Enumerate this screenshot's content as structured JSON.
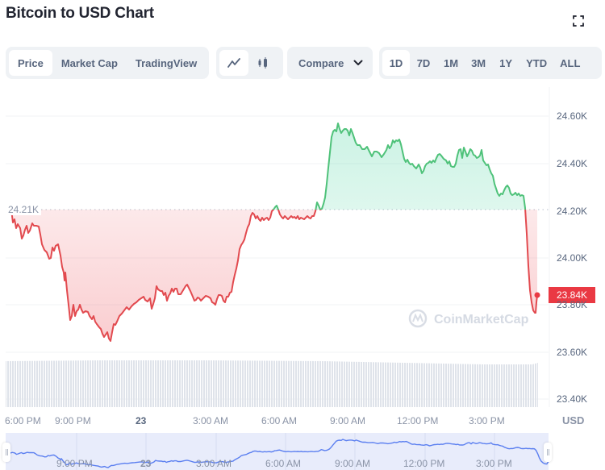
{
  "header": {
    "title": "Bitcoin to USD Chart",
    "fullscreen_icon": "fullscreen-expand-icon"
  },
  "toolbar": {
    "type_tabs": [
      {
        "label": "Price",
        "active": true
      },
      {
        "label": "Market Cap",
        "active": false
      },
      {
        "label": "TradingView",
        "active": false
      }
    ],
    "chart_type": [
      {
        "icon": "line-chart-icon",
        "active": true
      },
      {
        "icon": "candlestick-icon",
        "active": false
      }
    ],
    "compare": {
      "label": "Compare  ",
      "icon": "chevron-down-icon"
    },
    "ranges": [
      {
        "label": "1D",
        "active": true
      },
      {
        "label": "7D",
        "active": false
      },
      {
        "label": "1M",
        "active": false
      },
      {
        "label": "3M",
        "active": false
      },
      {
        "label": "1Y",
        "active": false
      },
      {
        "label": "YTD",
        "active": false
      },
      {
        "label": "ALL",
        "active": false
      }
    ]
  },
  "chart": {
    "baseline_label": "24.21K",
    "current_price_label": "23.84K",
    "currency_label": "USD",
    "watermark": "CoinMarketCap",
    "y_ticks": [
      "24.60K",
      "24.40K",
      "24.20K",
      "24.00K",
      "23.80K",
      "23.60K",
      "23.40K"
    ],
    "x_ticks": [
      "6:00 PM",
      "9:00 PM",
      "23",
      "3:00 AM",
      "6:00 AM",
      "9:00 AM",
      "12:00 PM",
      "3:00 PM"
    ],
    "navigator_ticks": [
      "9:00 PM",
      "23",
      "3:00 AM",
      "6:00 AM",
      "9:00 AM",
      "12:00 PM",
      "3:00 PM"
    ],
    "colors": {
      "up": "#16c784",
      "up_line": "#4fc27a",
      "down": "#ea3943",
      "navigator_line": "#5b7ff0",
      "navigator_fill": "#e8ecfb",
      "volume": "#e3e7ee"
    }
  },
  "chart_data": {
    "type": "line",
    "title": "Bitcoin to USD Chart",
    "xlabel": "",
    "ylabel": "USD",
    "ylim": [
      23400,
      24700
    ],
    "baseline": 24210,
    "last_value": 23840,
    "grid": true,
    "legend": "none",
    "x": [
      "5:30 PM",
      "6:00 PM",
      "7:00 PM",
      "8:00 PM",
      "9:00 PM",
      "10:00 PM",
      "11:00 PM",
      "12:00 AM",
      "1:00 AM",
      "2:00 AM",
      "3:00 AM",
      "4:00 AM",
      "5:00 AM",
      "6:00 AM",
      "7:00 AM",
      "8:00 AM",
      "8:30 AM",
      "9:00 AM",
      "10:00 AM",
      "11:00 AM",
      "12:00 PM",
      "1:00 PM",
      "2:00 PM",
      "3:00 PM",
      "3:30 PM",
      "4:00 PM",
      "4:30 PM",
      "4:40 PM",
      "4:50 PM"
    ],
    "values": [
      24210,
      24150,
      24100,
      24020,
      23900,
      23760,
      23720,
      23650,
      23780,
      23830,
      23850,
      23810,
      23950,
      24160,
      24180,
      24170,
      24220,
      24550,
      24490,
      24420,
      24430,
      24390,
      24420,
      24450,
      24380,
      24270,
      24240,
      23780,
      23840
    ],
    "x_tick_labels": [
      "6:00 PM",
      "9:00 PM",
      "23",
      "3:00 AM",
      "6:00 AM",
      "9:00 AM",
      "12:00 PM",
      "3:00 PM"
    ],
    "y_tick_labels": [
      "24.60K",
      "24.40K",
      "24.20K",
      "24.00K",
      "23.80K",
      "23.60K",
      "23.40K"
    ],
    "annotations": [
      "24.21K (open baseline)",
      "23.84K (current price)",
      "CoinMarketCap watermark"
    ]
  }
}
